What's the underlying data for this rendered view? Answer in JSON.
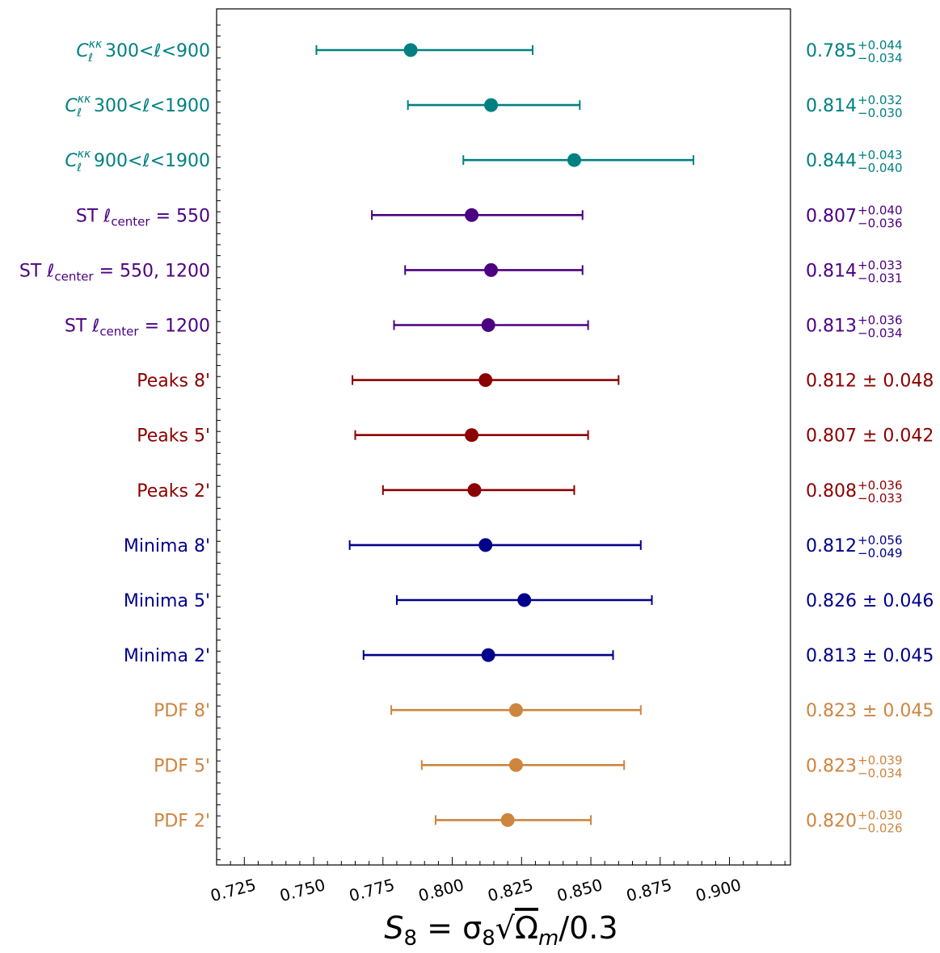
{
  "chart_data": {
    "type": "errorbar",
    "title": "",
    "xlabel": "S8 = σ8 √(Ωm/0.3)",
    "xlabel_parts": {
      "lhs": "S",
      "lhs_sub": "8",
      "eq": " = σ",
      "sigma_sub": "8",
      "root": "√",
      "omega": "Ω",
      "omega_sub": "m",
      "tail": "/0.3"
    },
    "xlim": [
      0.715,
      0.922
    ],
    "xticks": [
      "0.725",
      "0.750",
      "0.775",
      "0.800",
      "0.825",
      "0.850",
      "0.875",
      "0.900"
    ],
    "xtick_values": [
      0.725,
      0.75,
      0.775,
      0.8,
      0.825,
      0.85,
      0.875,
      0.9
    ],
    "rows": [
      {
        "label_main": "C",
        "label_sup": "κκ",
        "label_sub": "ℓ",
        "label_rest": " 300<ℓ<900",
        "label_tail": "",
        "value": 0.785,
        "plus": 0.044,
        "minus": 0.034,
        "text_value": "0.785",
        "text_plus": "+0.044",
        "text_minus": "−0.034",
        "symmetric": false,
        "color": "#008080"
      },
      {
        "label_main": "C",
        "label_sup": "κκ",
        "label_sub": "ℓ",
        "label_rest": " 300<ℓ<1900",
        "label_tail": "",
        "value": 0.814,
        "plus": 0.032,
        "minus": 0.03,
        "text_value": "0.814",
        "text_plus": "+0.032",
        "text_minus": "−0.030",
        "symmetric": false,
        "color": "#008080"
      },
      {
        "label_main": "C",
        "label_sup": "κκ",
        "label_sub": "ℓ",
        "label_rest": " 900<ℓ<1900",
        "label_tail": "",
        "value": 0.844,
        "plus": 0.043,
        "minus": 0.04,
        "text_value": "0.844",
        "text_plus": "+0.043",
        "text_minus": "−0.040",
        "symmetric": false,
        "color": "#008080"
      },
      {
        "label_main": "ST ℓ",
        "label_sup": "",
        "label_sub": "center",
        "label_rest": "",
        "label_tail": " = 550",
        "value": 0.807,
        "plus": 0.04,
        "minus": 0.036,
        "text_value": "0.807",
        "text_plus": "+0.040",
        "text_minus": "−0.036",
        "symmetric": false,
        "color": "#4b0082"
      },
      {
        "label_main": "ST ℓ",
        "label_sup": "",
        "label_sub": "center",
        "label_rest": "",
        "label_tail": " = 550, 1200",
        "value": 0.814,
        "plus": 0.033,
        "minus": 0.031,
        "text_value": "0.814",
        "text_plus": "+0.033",
        "text_minus": "−0.031",
        "symmetric": false,
        "color": "#4b0082"
      },
      {
        "label_main": "ST ℓ",
        "label_sup": "",
        "label_sub": "center",
        "label_rest": "",
        "label_tail": " = 1200",
        "value": 0.813,
        "plus": 0.036,
        "minus": 0.034,
        "text_value": "0.813",
        "text_plus": "+0.036",
        "text_minus": "−0.034",
        "symmetric": false,
        "color": "#4b0082"
      },
      {
        "label_main": "Peaks 8'",
        "label_sup": "",
        "label_sub": "",
        "label_rest": "",
        "label_tail": "",
        "value": 0.812,
        "plus": 0.048,
        "minus": 0.048,
        "text_value": "0.812 ± 0.048",
        "text_plus": "",
        "text_minus": "",
        "symmetric": true,
        "color": "#8b0000"
      },
      {
        "label_main": "Peaks 5'",
        "label_sup": "",
        "label_sub": "",
        "label_rest": "",
        "label_tail": "",
        "value": 0.807,
        "plus": 0.042,
        "minus": 0.042,
        "text_value": "0.807 ± 0.042",
        "text_plus": "",
        "text_minus": "",
        "symmetric": true,
        "color": "#8b0000"
      },
      {
        "label_main": "Peaks 2'",
        "label_sup": "",
        "label_sub": "",
        "label_rest": "",
        "label_tail": "",
        "value": 0.808,
        "plus": 0.036,
        "minus": 0.033,
        "text_value": "0.808",
        "text_plus": "+0.036",
        "text_minus": "−0.033",
        "symmetric": false,
        "color": "#8b0000"
      },
      {
        "label_main": "Minima 8'",
        "label_sup": "",
        "label_sub": "",
        "label_rest": "",
        "label_tail": "",
        "value": 0.812,
        "plus": 0.056,
        "minus": 0.049,
        "text_value": "0.812",
        "text_plus": "+0.056",
        "text_minus": "−0.049",
        "symmetric": false,
        "color": "#00008b"
      },
      {
        "label_main": "Minima 5'",
        "label_sup": "",
        "label_sub": "",
        "label_rest": "",
        "label_tail": "",
        "value": 0.826,
        "plus": 0.046,
        "minus": 0.046,
        "text_value": "0.826 ± 0.046",
        "text_plus": "",
        "text_minus": "",
        "symmetric": true,
        "color": "#00008b"
      },
      {
        "label_main": "Minima 2'",
        "label_sup": "",
        "label_sub": "",
        "label_rest": "",
        "label_tail": "",
        "value": 0.813,
        "plus": 0.045,
        "minus": 0.045,
        "text_value": "0.813 ± 0.045",
        "text_plus": "",
        "text_minus": "",
        "symmetric": true,
        "color": "#00008b"
      },
      {
        "label_main": "PDF 8'",
        "label_sup": "",
        "label_sub": "",
        "label_rest": "",
        "label_tail": "",
        "value": 0.823,
        "plus": 0.045,
        "minus": 0.045,
        "text_value": "0.823 ± 0.045",
        "text_plus": "",
        "text_minus": "",
        "symmetric": true,
        "color": "#cd853f"
      },
      {
        "label_main": "PDF 5'",
        "label_sup": "",
        "label_sub": "",
        "label_rest": "",
        "label_tail": "",
        "value": 0.823,
        "plus": 0.039,
        "minus": 0.034,
        "text_value": "0.823",
        "text_plus": "+0.039",
        "text_minus": "−0.034",
        "symmetric": false,
        "color": "#cd853f"
      },
      {
        "label_main": "PDF 2'",
        "label_sup": "",
        "label_sub": "",
        "label_rest": "",
        "label_tail": "",
        "value": 0.82,
        "plus": 0.03,
        "minus": 0.026,
        "text_value": "0.820",
        "text_plus": "+0.030",
        "text_minus": "−0.026",
        "symmetric": false,
        "color": "#cd853f"
      }
    ]
  }
}
